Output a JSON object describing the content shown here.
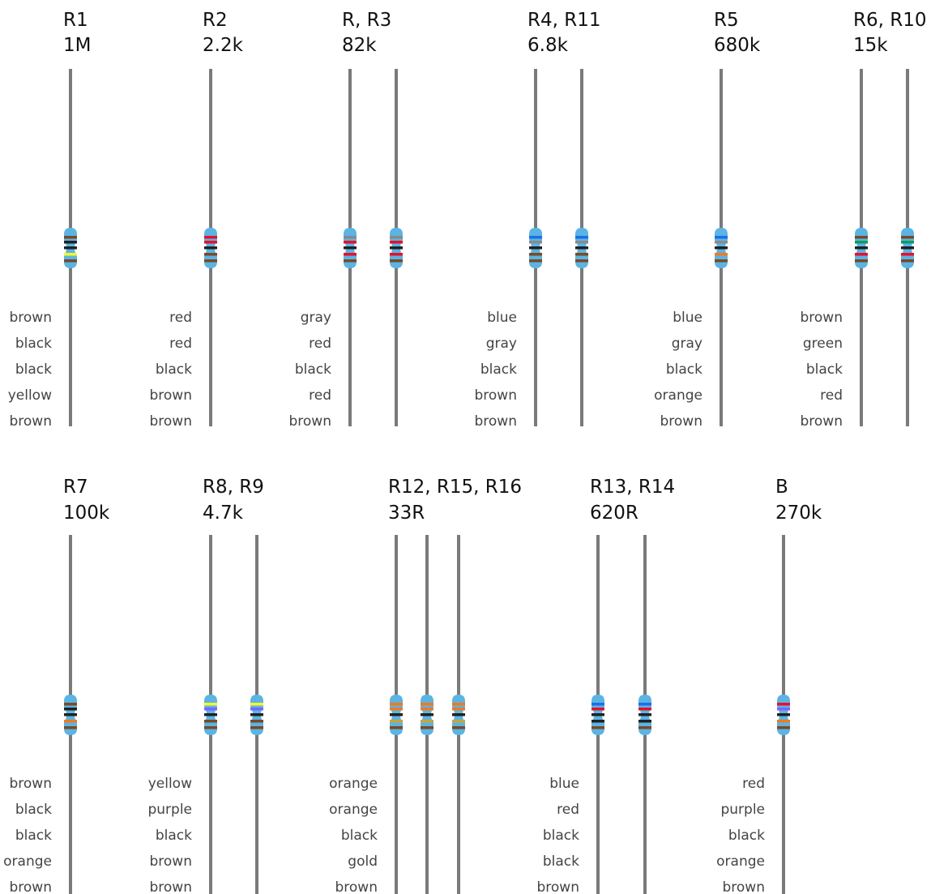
{
  "colors": {
    "resistor_body": "#5bb4e3",
    "lead": "#7a7a7a",
    "bands": {
      "black": "#222222",
      "brown": "#7a4a26",
      "red": "#e8102a",
      "orange": "#f07a1e",
      "yellow": "#f7f72a",
      "green": "#0f9b5e",
      "blue": "#1c6fe8",
      "purple": "#7f64ff",
      "gray": "#8a8a8a",
      "gold": "#c9a63c"
    }
  },
  "groups": [
    {
      "name": "R1",
      "value": "1M",
      "count": 1,
      "bands": [
        "brown",
        "black",
        "black",
        "yellow",
        "brown"
      ]
    },
    {
      "name": "R2",
      "value": "2.2k",
      "count": 1,
      "bands": [
        "red",
        "red",
        "black",
        "brown",
        "brown"
      ]
    },
    {
      "name": "R, R3",
      "value": "82k",
      "count": 2,
      "bands": [
        "gray",
        "red",
        "black",
        "red",
        "brown"
      ]
    },
    {
      "name": "R4, R11",
      "value": "6.8k",
      "count": 2,
      "bands": [
        "blue",
        "gray",
        "black",
        "brown",
        "brown"
      ]
    },
    {
      "name": "R5",
      "value": "680k",
      "count": 1,
      "bands": [
        "blue",
        "gray",
        "black",
        "orange",
        "brown"
      ]
    },
    {
      "name": "R6, R10",
      "value": "15k",
      "count": 2,
      "bands": [
        "brown",
        "green",
        "black",
        "red",
        "brown"
      ]
    },
    {
      "name": "R7",
      "value": "100k",
      "count": 1,
      "bands": [
        "brown",
        "black",
        "black",
        "orange",
        "brown"
      ]
    },
    {
      "name": "R8, R9",
      "value": "4.7k",
      "count": 2,
      "bands": [
        "yellow",
        "purple",
        "black",
        "brown",
        "brown"
      ]
    },
    {
      "name": "R12, R15, R16",
      "value": "33R",
      "count": 3,
      "bands": [
        "orange",
        "orange",
        "black",
        "gold",
        "brown"
      ]
    },
    {
      "name": "R13, R14",
      "value": "620R",
      "count": 2,
      "bands": [
        "blue",
        "red",
        "black",
        "black",
        "brown"
      ]
    },
    {
      "name": "B",
      "value": "270k",
      "count": 1,
      "bands": [
        "red",
        "purple",
        "black",
        "orange",
        "brown"
      ]
    }
  ]
}
